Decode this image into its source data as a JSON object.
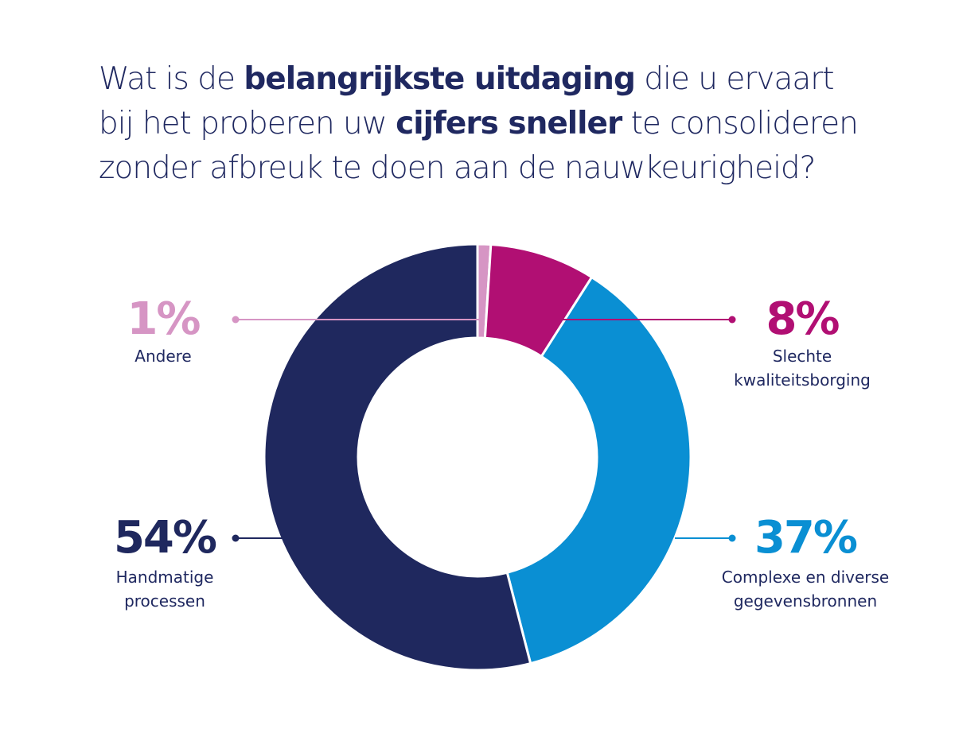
{
  "title": {
    "parts": [
      {
        "text": "Wat is de ",
        "bold": false
      },
      {
        "text": "belangrijkste uitdaging",
        "bold": true
      },
      {
        "text": " die u ervaart bij het proberen uw ",
        "bold": false
      },
      {
        "text": "cijfers sneller",
        "bold": true
      },
      {
        "text": " te consolideren zonder afbreuk te doen aan de nauwkeurigheid?",
        "bold": false
      }
    ]
  },
  "chart_data": {
    "type": "pie",
    "variant": "donut",
    "title": "Wat is de belangrijkste uitdaging die u ervaart bij het proberen uw cijfers sneller te consolideren zonder afbreuk te doen aan de nauwkeurigheid?",
    "unit": "%",
    "start": "top",
    "direction": "clockwise",
    "slices": [
      {
        "label": "Andere",
        "label_lines": [
          "Andere"
        ],
        "value": 1,
        "display": "1%",
        "color": "#d695c4",
        "callout_side": "left-top"
      },
      {
        "label": "Slechte kwaliteitsborging",
        "label_lines": [
          "Slechte",
          "kwaliteitsborging"
        ],
        "value": 8,
        "display": "8%",
        "color": "#b10f73",
        "callout_side": "right-top"
      },
      {
        "label": "Complexe en diverse gegevensbronnen",
        "label_lines": [
          "Complexe en diverse",
          "gegevensbronnen"
        ],
        "value": 37,
        "display": "37%",
        "color": "#0a8fd3",
        "callout_side": "right-bottom"
      },
      {
        "label": "Handmatige processen",
        "label_lines": [
          "Handmatige",
          "processen"
        ],
        "value": 54,
        "display": "54%",
        "color": "#1f285e",
        "callout_side": "left-bottom"
      }
    ]
  },
  "colors": {
    "text": "#1f2860",
    "background": "#ffffff"
  }
}
